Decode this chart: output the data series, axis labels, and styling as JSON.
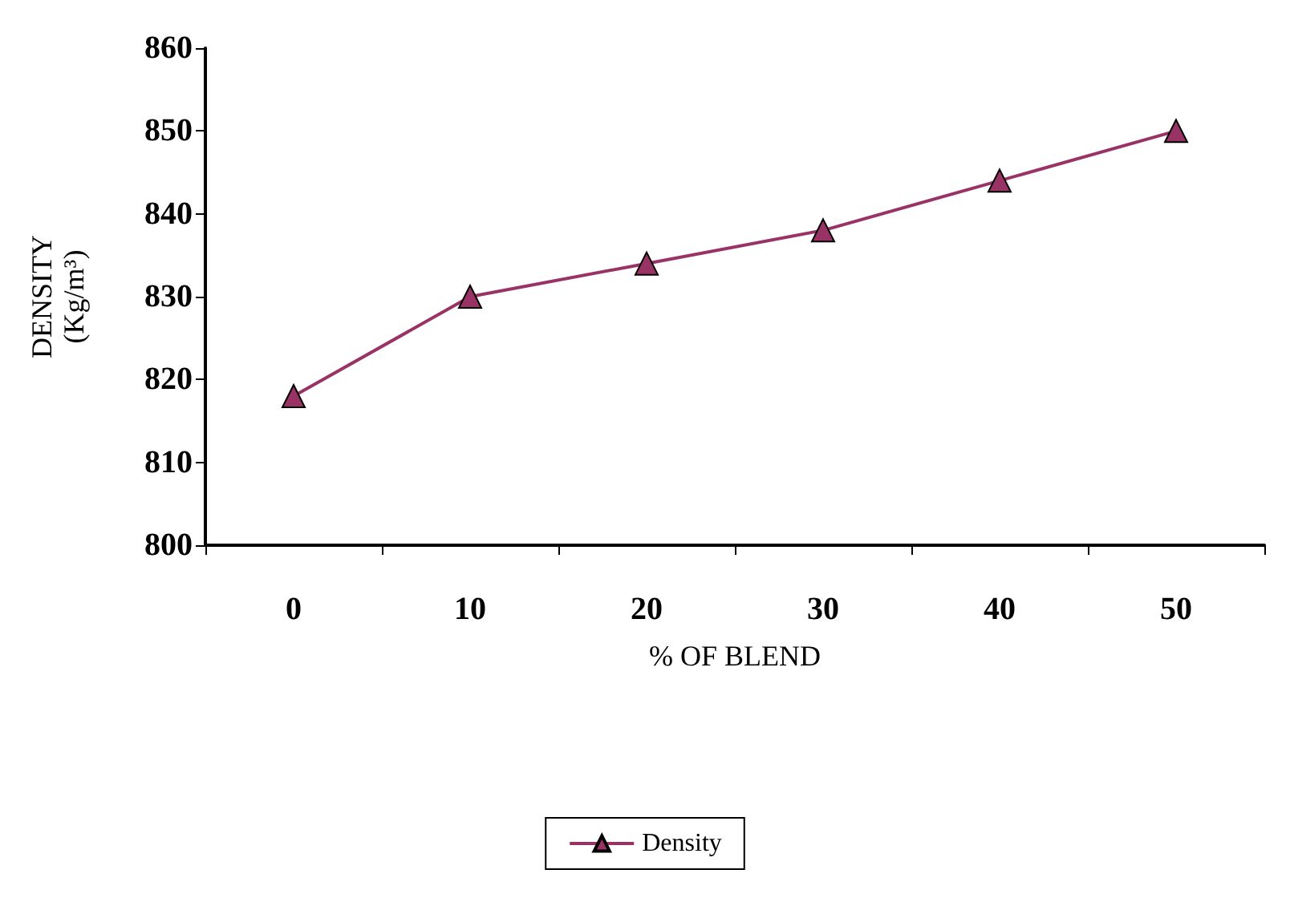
{
  "chart_data": {
    "type": "line",
    "xlabel": "% OF BLEND",
    "ylabel": "DENSITY\n(Kg/m³)",
    "categories": [
      "0",
      "10",
      "20",
      "30",
      "40",
      "50"
    ],
    "series": [
      {
        "name": "Density",
        "color": "#993366",
        "values": [
          818,
          830,
          834,
          838,
          844,
          850
        ]
      }
    ],
    "ylim": [
      800,
      860
    ],
    "yticks": [
      800,
      810,
      820,
      830,
      840,
      850,
      860
    ],
    "grid": false,
    "legend": "bottom",
    "marker": "triangle",
    "line_style": "solid"
  }
}
